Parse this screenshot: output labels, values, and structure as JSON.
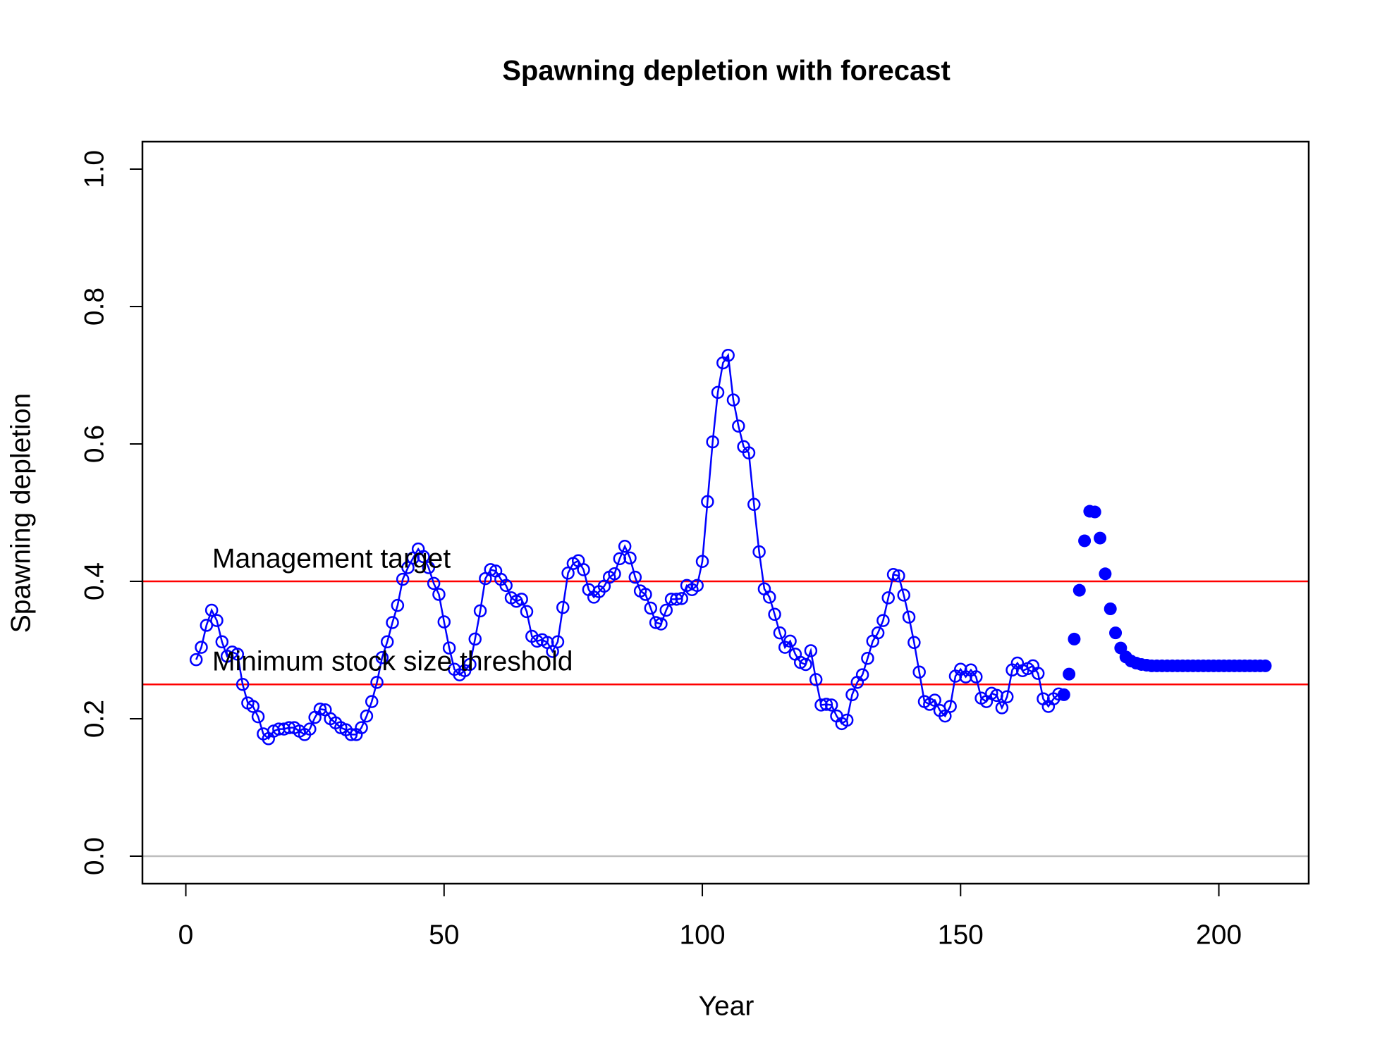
{
  "chart_data": {
    "type": "line",
    "title": "Spawning depletion with forecast",
    "xlabel": "Year",
    "ylabel": "Spawning depletion",
    "xlim": [
      -8.4,
      217.4
    ],
    "xticks": [
      0,
      50,
      100,
      150,
      200
    ],
    "ylim": [
      -0.04,
      1.04
    ],
    "yticks": [
      {
        "value": 0,
        "label": "0.0"
      },
      0.2,
      0.4,
      0.6,
      0.8,
      {
        "value": 1,
        "label": "1.0"
      }
    ],
    "hlines": [
      {
        "value": 0.4,
        "label": "Management target",
        "color": "#ff0000"
      },
      {
        "value": 0.25,
        "label": "Minimum stock size threshold",
        "color": "#ff0000"
      },
      {
        "value": 0,
        "color": "#bebebe"
      }
    ],
    "series": [
      {
        "color": "#0000ff",
        "marker": "open",
        "line": true,
        "x": [
          2,
          3,
          4,
          5,
          6,
          7,
          8,
          9,
          10,
          11,
          12,
          13,
          14,
          15,
          16,
          17,
          18,
          19,
          20,
          21,
          22,
          23,
          24,
          25,
          26,
          27,
          28,
          29,
          30,
          31,
          32,
          33,
          34,
          35,
          36,
          37,
          38,
          39,
          40,
          41,
          42,
          43,
          44,
          45,
          46,
          47,
          48,
          49,
          50,
          51,
          52,
          53,
          54,
          55,
          56,
          57,
          58,
          59,
          60,
          61,
          62,
          63,
          64,
          65,
          66,
          67,
          68,
          69,
          70,
          71,
          72,
          73,
          74,
          75,
          76,
          77,
          78,
          79,
          80,
          81,
          82,
          83,
          84,
          85,
          86,
          87,
          88,
          89,
          90,
          91,
          92,
          93,
          94,
          95,
          96,
          97,
          98,
          99,
          100,
          101,
          102,
          103,
          104,
          105,
          106,
          107,
          108,
          109,
          110,
          111,
          112,
          113,
          114,
          115,
          116,
          117,
          118,
          119,
          120,
          121,
          122,
          123,
          124,
          125,
          126,
          127,
          128,
          129,
          130,
          131,
          132,
          133,
          134,
          135,
          136,
          137,
          138,
          139,
          140,
          141,
          142,
          143,
          144,
          145,
          146,
          147,
          148,
          149,
          150,
          151,
          152,
          153,
          154,
          155,
          156,
          157,
          158,
          159,
          160,
          161,
          162,
          163,
          164,
          165,
          166,
          167,
          168,
          169
        ],
        "values": [
          0.286,
          0.304,
          0.336,
          0.358,
          0.343,
          0.312,
          0.291,
          0.297,
          0.294,
          0.25,
          0.223,
          0.218,
          0.203,
          0.178,
          0.171,
          0.182,
          0.185,
          0.185,
          0.187,
          0.187,
          0.182,
          0.177,
          0.185,
          0.202,
          0.214,
          0.213,
          0.2,
          0.194,
          0.187,
          0.184,
          0.177,
          0.177,
          0.187,
          0.204,
          0.225,
          0.253,
          0.289,
          0.312,
          0.34,
          0.365,
          0.403,
          0.42,
          0.434,
          0.447,
          0.436,
          0.42,
          0.397,
          0.381,
          0.341,
          0.303,
          0.272,
          0.264,
          0.27,
          0.279,
          0.316,
          0.357,
          0.404,
          0.417,
          0.415,
          0.403,
          0.394,
          0.376,
          0.371,
          0.374,
          0.356,
          0.32,
          0.313,
          0.315,
          0.311,
          0.298,
          0.312,
          0.362,
          0.412,
          0.426,
          0.43,
          0.417,
          0.388,
          0.377,
          0.385,
          0.393,
          0.406,
          0.411,
          0.433,
          0.451,
          0.434,
          0.406,
          0.386,
          0.381,
          0.361,
          0.34,
          0.338,
          0.358,
          0.374,
          0.374,
          0.375,
          0.394,
          0.388,
          0.394,
          0.429,
          0.516,
          0.603,
          0.675,
          0.718,
          0.729,
          0.664,
          0.626,
          0.596,
          0.587,
          0.512,
          0.443,
          0.389,
          0.377,
          0.352,
          0.325,
          0.304,
          0.313,
          0.294,
          0.282,
          0.279,
          0.299,
          0.257,
          0.22,
          0.221,
          0.22,
          0.204,
          0.193,
          0.198,
          0.235,
          0.253,
          0.264,
          0.288,
          0.313,
          0.325,
          0.343,
          0.376,
          0.41,
          0.408,
          0.38,
          0.348,
          0.311,
          0.268,
          0.225,
          0.221,
          0.227,
          0.212,
          0.204,
          0.218,
          0.262,
          0.272,
          0.261,
          0.271,
          0.261,
          0.23,
          0.225,
          0.237,
          0.234,
          0.216,
          0.232,
          0.271,
          0.281,
          0.27,
          0.273,
          0.277,
          0.266,
          0.229,
          0.218,
          0.229,
          0.236
        ]
      },
      {
        "color": "#0000ff",
        "marker": "filled",
        "line": false,
        "x": [
          170,
          171,
          172,
          173,
          174,
          175,
          176,
          177,
          178,
          179,
          180,
          181,
          182,
          183,
          184,
          185,
          186,
          187,
          188,
          189,
          190,
          191,
          192,
          193,
          194,
          195,
          196,
          197,
          198,
          199,
          200,
          201,
          202,
          203,
          204,
          205,
          206,
          207,
          208,
          209
        ],
        "values": [
          0.235,
          0.265,
          0.316,
          0.387,
          0.459,
          0.502,
          0.501,
          0.463,
          0.411,
          0.36,
          0.325,
          0.303,
          0.29,
          0.284,
          0.281,
          0.279,
          0.278,
          0.277,
          0.277,
          0.277,
          0.277,
          0.277,
          0.277,
          0.277,
          0.277,
          0.277,
          0.277,
          0.277,
          0.277,
          0.277,
          0.277,
          0.277,
          0.277,
          0.277,
          0.277,
          0.277,
          0.277,
          0.277,
          0.277,
          0.277
        ]
      }
    ]
  }
}
